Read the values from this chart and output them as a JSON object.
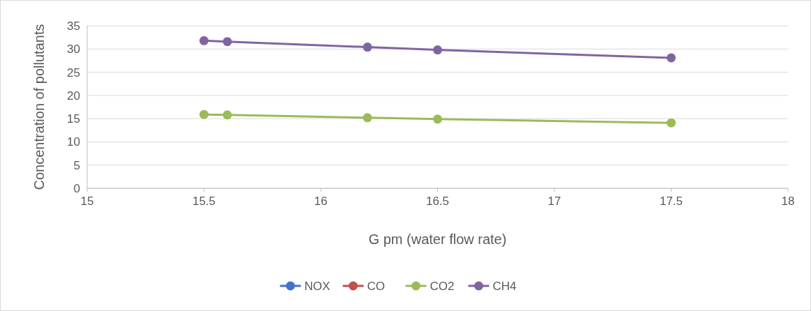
{
  "chart_data": {
    "type": "line",
    "xlabel": "G pm (water flow rate)",
    "ylabel": "Concentration of pollutants",
    "x": [
      15.5,
      15.6,
      16.2,
      16.5,
      17.5
    ],
    "xlim": [
      15,
      18
    ],
    "xticks": [
      15,
      15.5,
      16,
      16.5,
      17,
      17.5,
      18
    ],
    "ylim": [
      0,
      35
    ],
    "yticks": [
      0,
      5,
      10,
      15,
      20,
      25,
      30,
      35
    ],
    "grid": "y",
    "legend": "bottom",
    "marker": "circle",
    "line_style": "solid",
    "series": [
      {
        "name": "NOX",
        "color": "#4472c4",
        "values": [
          null,
          null,
          null,
          null,
          null
        ]
      },
      {
        "name": "CO",
        "color": "#c0504d",
        "values": [
          null,
          null,
          null,
          null,
          null
        ]
      },
      {
        "name": "CO2",
        "color": "#9bbb59",
        "values": [
          15.9,
          15.8,
          15.2,
          14.9,
          14.1
        ]
      },
      {
        "name": "CH4",
        "color": "#8064a2",
        "values": [
          31.8,
          31.6,
          30.4,
          29.8,
          28.1
        ]
      }
    ]
  }
}
